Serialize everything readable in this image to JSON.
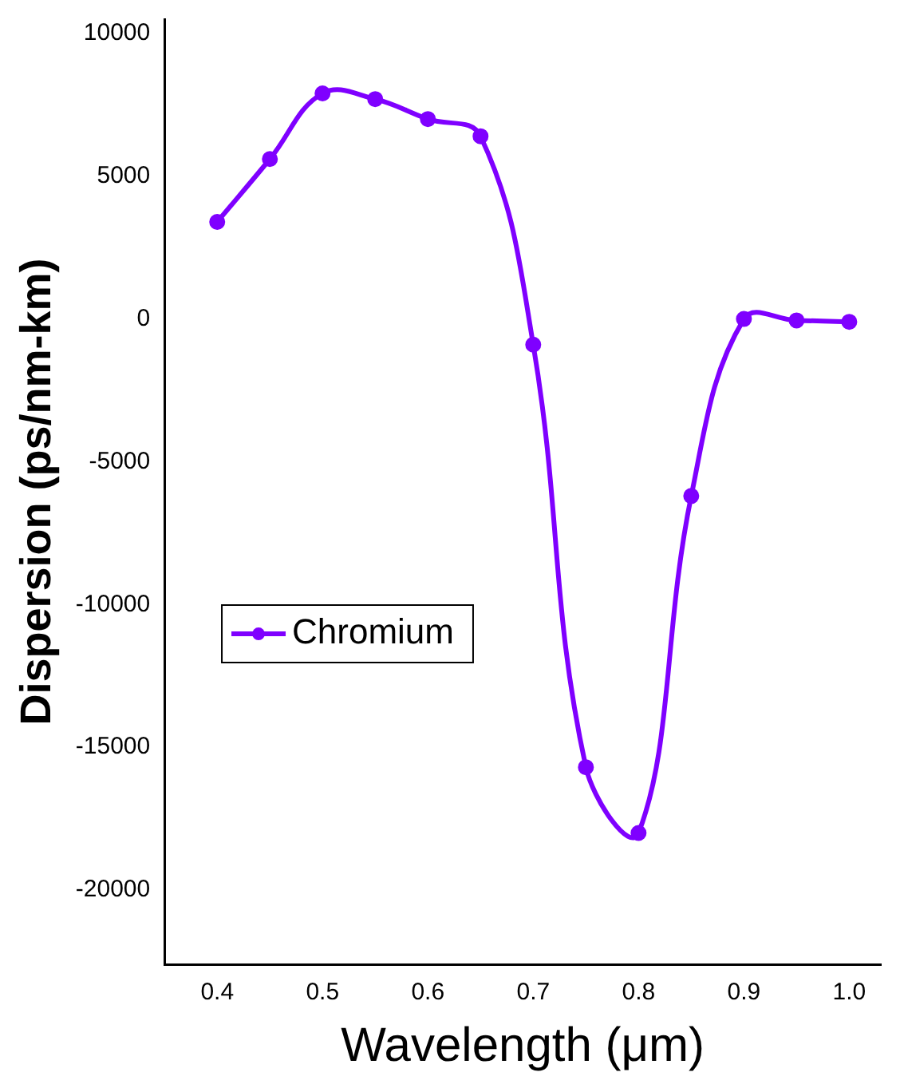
{
  "chart_data": {
    "type": "line",
    "xlabel": "Wavelength (μm)",
    "ylabel": "Dispersion (ps/nm-km)",
    "x": [
      0.4,
      0.45,
      0.5,
      0.55,
      0.6,
      0.65,
      0.7,
      0.75,
      0.8,
      0.85,
      0.9,
      0.95,
      1.0
    ],
    "series": [
      {
        "name": "Chromium",
        "color": "#7f00ff",
        "values": [
          3400,
          5600,
          7900,
          7700,
          7000,
          6400,
          -900,
          -15700,
          -18000,
          -6200,
          0,
          -50,
          -100
        ]
      }
    ],
    "xlim": [
      0.35,
      1.03
    ],
    "xticks": [
      0.4,
      0.5,
      0.6,
      0.7,
      0.8,
      0.9,
      {
        "value": 1,
        "label": "1.0"
      }
    ],
    "ylim": [
      -22600,
      10500
    ],
    "yticks": [
      -20000,
      -15000,
      -10000,
      -5000,
      0,
      5000,
      10000
    ],
    "grid": false,
    "legend": "center left",
    "marker": "circle",
    "line_style": "solid"
  }
}
